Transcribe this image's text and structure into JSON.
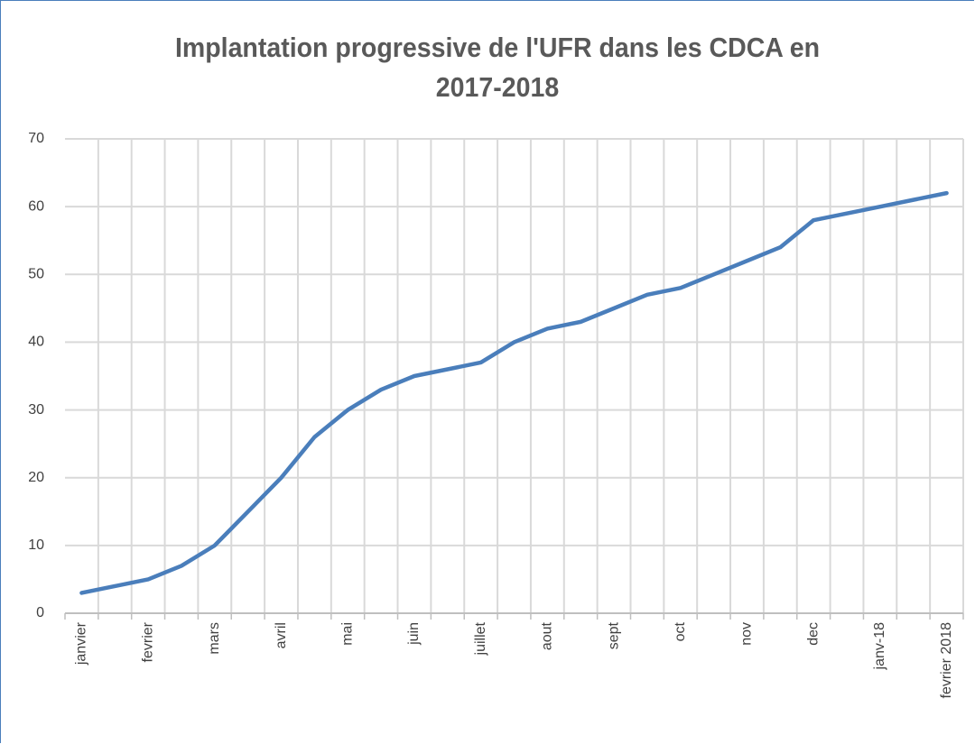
{
  "chart_data": {
    "type": "line",
    "title": "Implantation progressive de l'UFR dans les CDCA en 2017-2018",
    "categories": [
      "janvier",
      null,
      "fevrier",
      null,
      "mars",
      null,
      "avril",
      null,
      "mai",
      null,
      "juin",
      null,
      "juillet",
      null,
      "aout",
      null,
      "sept",
      null,
      "oct",
      null,
      "nov",
      null,
      "dec",
      null,
      "janv-18",
      null,
      "fevrier 2018"
    ],
    "series": [
      {
        "name": "CDCA",
        "color": "#4a7ebb",
        "values": [
          3,
          4,
          5,
          7,
          10,
          15,
          20,
          26,
          30,
          33,
          35,
          36,
          37,
          40,
          42,
          43,
          45,
          47,
          48,
          50,
          52,
          54,
          58,
          59,
          60,
          61,
          62
        ]
      }
    ],
    "ylim": [
      0,
      70
    ],
    "yticks": [
      0,
      10,
      20,
      30,
      40,
      50,
      60,
      70
    ],
    "grid": true
  }
}
